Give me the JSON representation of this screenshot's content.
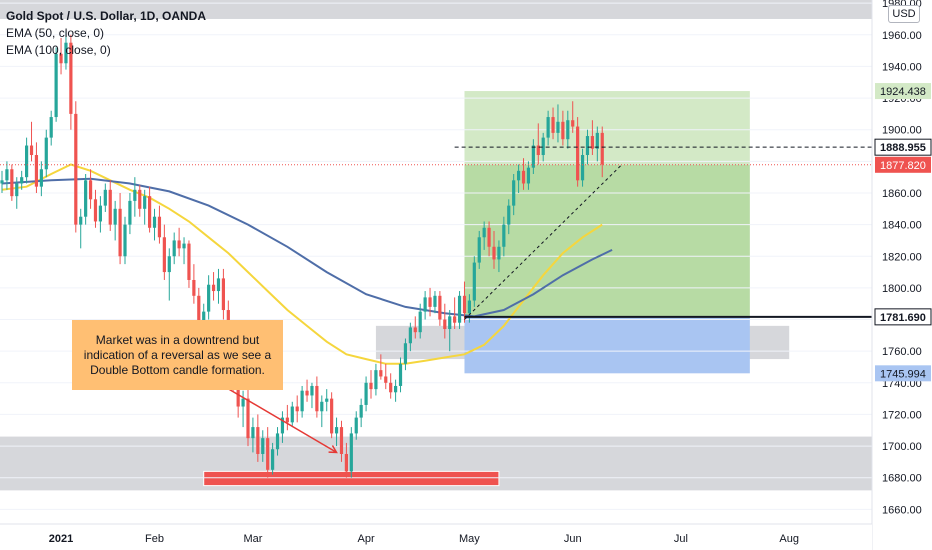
{
  "legend": {
    "title": "Gold Spot / U.S. Dollar, 1D, OANDA",
    "ema50": "EMA (50, close, 0)",
    "ema100": "EMA (100, close, 0)"
  },
  "axis_unit": "USD",
  "annotation": "Market was in a downtrend but indication of a reversal as we see a Double Bottom candle formation.",
  "colors": {
    "up": "#26a69a",
    "down": "#ef5350",
    "ema50": "#f5d63d",
    "ema100": "#4f6ea8",
    "zone_gray": "#cfd0d5",
    "target_green": "#b7dba4",
    "stop_blue": "#9fbff0",
    "red_bar": "#ef5350",
    "annotation_bg": "#ffbf73"
  },
  "chart_data": {
    "type": "candlestick",
    "symbol": "XAU/USD",
    "timeframe": "1D",
    "x_ticks": [
      "2021",
      "Feb",
      "Mar",
      "Apr",
      "May",
      "Jun",
      "Jul",
      "Aug"
    ],
    "y_ticks": [
      1660,
      1680,
      1700,
      1720,
      1740,
      1760,
      1780,
      1800,
      1820,
      1840,
      1860,
      1880,
      1900,
      1920,
      1940,
      1960,
      1980
    ],
    "ylim": [
      1652,
      1982
    ],
    "price_labels": [
      {
        "text": "1924.438",
        "value": 1924.438,
        "style": "green"
      },
      {
        "text": "1888.955",
        "value": 1888.955,
        "style": "dark"
      },
      {
        "text": "1877.820",
        "value": 1877.82,
        "style": "red"
      },
      {
        "text": "1781.690",
        "value": 1781.69,
        "style": "dark"
      },
      {
        "text": "1745.994",
        "value": 1745.994,
        "style": "blue"
      }
    ],
    "candles": [
      [
        1866,
        1874,
        1860,
        1868
      ],
      [
        1868,
        1880,
        1862,
        1875
      ],
      [
        1875,
        1878,
        1855,
        1858
      ],
      [
        1858,
        1870,
        1850,
        1866
      ],
      [
        1866,
        1874,
        1862,
        1870
      ],
      [
        1870,
        1895,
        1866,
        1890
      ],
      [
        1890,
        1905,
        1880,
        1884
      ],
      [
        1884,
        1892,
        1860,
        1864
      ],
      [
        1864,
        1880,
        1858,
        1875
      ],
      [
        1875,
        1900,
        1870,
        1895
      ],
      [
        1895,
        1912,
        1890,
        1908
      ],
      [
        1908,
        1952,
        1905,
        1948
      ],
      [
        1948,
        1958,
        1935,
        1942
      ],
      [
        1942,
        1962,
        1938,
        1955
      ],
      [
        1955,
        1960,
        1900,
        1910
      ],
      [
        1910,
        1918,
        1835,
        1840
      ],
      [
        1840,
        1850,
        1825,
        1845
      ],
      [
        1845,
        1872,
        1840,
        1868
      ],
      [
        1868,
        1875,
        1850,
        1856
      ],
      [
        1856,
        1862,
        1838,
        1842
      ],
      [
        1842,
        1858,
        1835,
        1852
      ],
      [
        1852,
        1866,
        1848,
        1862
      ],
      [
        1862,
        1868,
        1836,
        1840
      ],
      [
        1840,
        1855,
        1830,
        1850
      ],
      [
        1850,
        1860,
        1815,
        1820
      ],
      [
        1820,
        1845,
        1815,
        1840
      ],
      [
        1840,
        1860,
        1834,
        1855
      ],
      [
        1855,
        1870,
        1845,
        1862
      ],
      [
        1862,
        1865,
        1845,
        1850
      ],
      [
        1850,
        1862,
        1840,
        1858
      ],
      [
        1858,
        1864,
        1835,
        1838
      ],
      [
        1838,
        1850,
        1830,
        1845
      ],
      [
        1845,
        1852,
        1828,
        1832
      ],
      [
        1832,
        1840,
        1805,
        1810
      ],
      [
        1810,
        1825,
        1792,
        1820
      ],
      [
        1820,
        1835,
        1815,
        1830
      ],
      [
        1830,
        1838,
        1820,
        1825
      ],
      [
        1825,
        1832,
        1815,
        1828
      ],
      [
        1828,
        1830,
        1800,
        1805
      ],
      [
        1805,
        1815,
        1790,
        1795
      ],
      [
        1795,
        1800,
        1772,
        1778
      ],
      [
        1778,
        1790,
        1770,
        1785
      ],
      [
        1785,
        1808,
        1780,
        1802
      ],
      [
        1802,
        1810,
        1792,
        1798
      ],
      [
        1798,
        1812,
        1790,
        1806
      ],
      [
        1806,
        1812,
        1780,
        1786
      ],
      [
        1786,
        1792,
        1755,
        1760
      ],
      [
        1760,
        1768,
        1735,
        1742
      ],
      [
        1742,
        1752,
        1718,
        1725
      ],
      [
        1725,
        1735,
        1712,
        1730
      ],
      [
        1730,
        1738,
        1700,
        1705
      ],
      [
        1705,
        1718,
        1696,
        1712
      ],
      [
        1712,
        1720,
        1690,
        1695
      ],
      [
        1695,
        1710,
        1690,
        1705
      ],
      [
        1705,
        1712,
        1680,
        1685
      ],
      [
        1685,
        1702,
        1682,
        1698
      ],
      [
        1698,
        1712,
        1694,
        1708
      ],
      [
        1708,
        1722,
        1702,
        1718
      ],
      [
        1718,
        1726,
        1710,
        1715
      ],
      [
        1715,
        1728,
        1712,
        1725
      ],
      [
        1725,
        1732,
        1715,
        1722
      ],
      [
        1722,
        1738,
        1718,
        1735
      ],
      [
        1735,
        1742,
        1728,
        1732
      ],
      [
        1732,
        1740,
        1724,
        1738
      ],
      [
        1738,
        1744,
        1718,
        1722
      ],
      [
        1722,
        1732,
        1712,
        1728
      ],
      [
        1728,
        1736,
        1722,
        1730
      ],
      [
        1730,
        1734,
        1705,
        1708
      ],
      [
        1708,
        1718,
        1700,
        1712
      ],
      [
        1712,
        1716,
        1690,
        1695
      ],
      [
        1695,
        1702,
        1680,
        1684
      ],
      [
        1684,
        1712,
        1680,
        1708
      ],
      [
        1708,
        1722,
        1704,
        1718
      ],
      [
        1718,
        1730,
        1712,
        1726
      ],
      [
        1726,
        1744,
        1722,
        1740
      ],
      [
        1740,
        1748,
        1730,
        1736
      ],
      [
        1736,
        1752,
        1732,
        1748
      ],
      [
        1748,
        1758,
        1742,
        1744
      ],
      [
        1744,
        1752,
        1736,
        1740
      ],
      [
        1740,
        1746,
        1730,
        1734
      ],
      [
        1734,
        1742,
        1728,
        1738
      ],
      [
        1738,
        1756,
        1734,
        1752
      ],
      [
        1752,
        1768,
        1748,
        1765
      ],
      [
        1765,
        1778,
        1760,
        1775
      ],
      [
        1775,
        1782,
        1768,
        1772
      ],
      [
        1772,
        1790,
        1768,
        1785
      ],
      [
        1785,
        1798,
        1780,
        1794
      ],
      [
        1794,
        1800,
        1782,
        1788
      ],
      [
        1788,
        1798,
        1784,
        1795
      ],
      [
        1795,
        1798,
        1776,
        1780
      ],
      [
        1780,
        1790,
        1768,
        1774
      ],
      [
        1774,
        1786,
        1760,
        1782
      ],
      [
        1782,
        1794,
        1774,
        1778
      ],
      [
        1778,
        1798,
        1774,
        1795
      ],
      [
        1795,
        1804,
        1778,
        1784
      ],
      [
        1784,
        1796,
        1778,
        1792
      ],
      [
        1792,
        1820,
        1788,
        1816
      ],
      [
        1816,
        1836,
        1812,
        1832
      ],
      [
        1832,
        1842,
        1824,
        1838
      ],
      [
        1838,
        1842,
        1820,
        1826
      ],
      [
        1826,
        1836,
        1812,
        1818
      ],
      [
        1818,
        1830,
        1810,
        1826
      ],
      [
        1826,
        1845,
        1820,
        1840
      ],
      [
        1840,
        1856,
        1834,
        1852
      ],
      [
        1852,
        1872,
        1846,
        1868
      ],
      [
        1868,
        1878,
        1860,
        1874
      ],
      [
        1874,
        1882,
        1862,
        1866
      ],
      [
        1866,
        1880,
        1862,
        1876
      ],
      [
        1876,
        1894,
        1872,
        1890
      ],
      [
        1890,
        1904,
        1878,
        1884
      ],
      [
        1884,
        1898,
        1880,
        1895
      ],
      [
        1895,
        1912,
        1890,
        1908
      ],
      [
        1908,
        1914,
        1894,
        1898
      ],
      [
        1898,
        1916,
        1892,
        1905
      ],
      [
        1905,
        1912,
        1890,
        1894
      ],
      [
        1894,
        1912,
        1888,
        1906
      ],
      [
        1906,
        1918,
        1898,
        1902
      ],
      [
        1902,
        1908,
        1864,
        1868
      ],
      [
        1868,
        1888,
        1864,
        1884
      ],
      [
        1884,
        1900,
        1878,
        1896
      ],
      [
        1896,
        1906,
        1884,
        1888
      ],
      [
        1888,
        1902,
        1880,
        1898
      ],
      [
        1898,
        1902,
        1870,
        1878
      ]
    ],
    "ema50": [
      [
        0,
        1862
      ],
      [
        5,
        1864
      ],
      [
        10,
        1872
      ],
      [
        14,
        1878
      ],
      [
        18,
        1874
      ],
      [
        22,
        1868
      ],
      [
        26,
        1862
      ],
      [
        30,
        1857
      ],
      [
        34,
        1850
      ],
      [
        38,
        1842
      ],
      [
        42,
        1832
      ],
      [
        46,
        1822
      ],
      [
        50,
        1810
      ],
      [
        54,
        1798
      ],
      [
        58,
        1786
      ],
      [
        62,
        1776
      ],
      [
        66,
        1766
      ],
      [
        70,
        1758
      ],
      [
        74,
        1755
      ],
      [
        78,
        1752
      ],
      [
        82,
        1752
      ],
      [
        86,
        1754
      ],
      [
        90,
        1756
      ],
      [
        94,
        1758
      ],
      [
        98,
        1764
      ],
      [
        102,
        1776
      ],
      [
        106,
        1792
      ],
      [
        110,
        1808
      ],
      [
        114,
        1822
      ],
      [
        118,
        1832
      ],
      [
        122,
        1840
      ]
    ],
    "ema100": [
      [
        0,
        1866
      ],
      [
        10,
        1868
      ],
      [
        18,
        1869
      ],
      [
        26,
        1866
      ],
      [
        34,
        1861
      ],
      [
        42,
        1852
      ],
      [
        50,
        1840
      ],
      [
        58,
        1826
      ],
      [
        66,
        1810
      ],
      [
        74,
        1796
      ],
      [
        82,
        1788
      ],
      [
        90,
        1784
      ],
      [
        96,
        1782
      ],
      [
        102,
        1786
      ],
      [
        108,
        1796
      ],
      [
        114,
        1808
      ],
      [
        120,
        1818
      ],
      [
        124,
        1824
      ]
    ],
    "zones": [
      {
        "kind": "gray",
        "from_x": -10,
        "to_x": 190,
        "y_top": 1982,
        "y_bottom": 1970
      },
      {
        "kind": "gray",
        "from_x": -10,
        "to_x": 190,
        "y_top": 1706,
        "y_bottom": 1672
      },
      {
        "kind": "gray",
        "from_x": 76,
        "to_x": 160,
        "y_top": 1776,
        "y_bottom": 1755
      },
      {
        "kind": "target",
        "from_x": 94,
        "to_x": 152,
        "y_top": 1924.438,
        "y_bottom": 1877.82
      },
      {
        "kind": "target_dark",
        "from_x": 94,
        "to_x": 152,
        "y_top": 1877.82,
        "y_bottom": 1781.69
      },
      {
        "kind": "stop",
        "from_x": 94,
        "to_x": 152,
        "y_top": 1781.69,
        "y_bottom": 1745.994
      }
    ],
    "red_bar": {
      "from_x": 41,
      "to_x": 101,
      "y_top": 1684,
      "y_bottom": 1675
    },
    "lines": [
      {
        "kind": "dashed-black",
        "x1": 92,
        "y1": 1888.955,
        "x2": 180,
        "y2": 1888.955
      },
      {
        "kind": "dotted-red",
        "x1": -10,
        "y1": 1877.82,
        "x2": 180,
        "y2": 1877.82
      },
      {
        "kind": "solid-black",
        "x1": 94,
        "y1": 1781.69,
        "x2": 180,
        "y2": 1781.69
      },
      {
        "kind": "dashed-trend",
        "x1": 94,
        "y1": 1780,
        "x2": 126,
        "y2": 1878
      },
      {
        "kind": "arrow-red",
        "x1": 45,
        "y1": 1738,
        "x2": 68,
        "y2": 1696
      }
    ]
  }
}
